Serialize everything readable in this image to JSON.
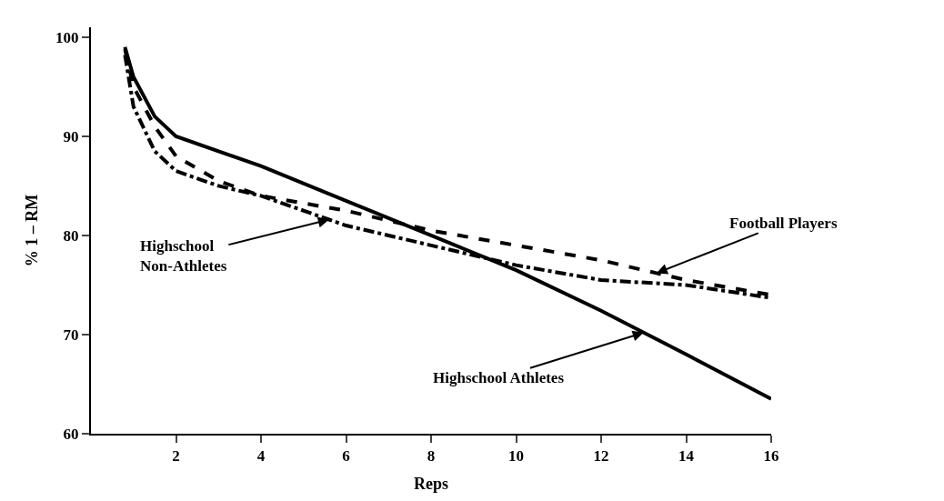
{
  "chart_data": {
    "type": "line",
    "xlabel": "Reps",
    "ylabel": "% 1 – RM",
    "xlim": [
      0,
      16
    ],
    "ylim": [
      60,
      101
    ],
    "xticks": [
      2,
      4,
      6,
      8,
      10,
      12,
      14,
      16
    ],
    "yticks": [
      60,
      70,
      80,
      90,
      100
    ],
    "legend": false,
    "marker": "none",
    "series": [
      {
        "color": "#000000",
        "line_style": "solid",
        "x": [
          0.8,
          1,
          1.5,
          2,
          4,
          6,
          8,
          10,
          12,
          13,
          14,
          16
        ],
        "values": [
          99,
          96,
          92,
          90,
          87,
          83.5,
          80,
          76.5,
          72.4,
          70.2,
          68,
          63.5
        ]
      },
      {
        "color": "#000000",
        "line_style": "dashed",
        "x": [
          0.8,
          1,
          1.5,
          2,
          3,
          4,
          6,
          8,
          10,
          12,
          13.3,
          14,
          16
        ],
        "values": [
          98.8,
          95,
          91,
          88,
          85.5,
          84,
          82.5,
          80.5,
          79,
          77.5,
          76.2,
          75.5,
          74
        ]
      },
      {
        "color": "#000000",
        "line_style": "dashdot",
        "x": [
          0.8,
          1,
          1.5,
          2,
          3,
          4,
          5.6,
          6,
          8,
          10,
          12,
          14,
          16
        ],
        "values": [
          98.2,
          93,
          88.5,
          86.5,
          85,
          84,
          81.6,
          81,
          79,
          77,
          75.5,
          75,
          73.7
        ]
      }
    ],
    "annotations": [
      {
        "text": "Football Players",
        "x": 13.3,
        "y": 76.2
      },
      {
        "text": "Highschool\nNon-Athletes",
        "x": 5.6,
        "y": 81.6
      },
      {
        "text": "Highschool Athletes",
        "x": 13,
        "y": 70.2
      }
    ]
  }
}
